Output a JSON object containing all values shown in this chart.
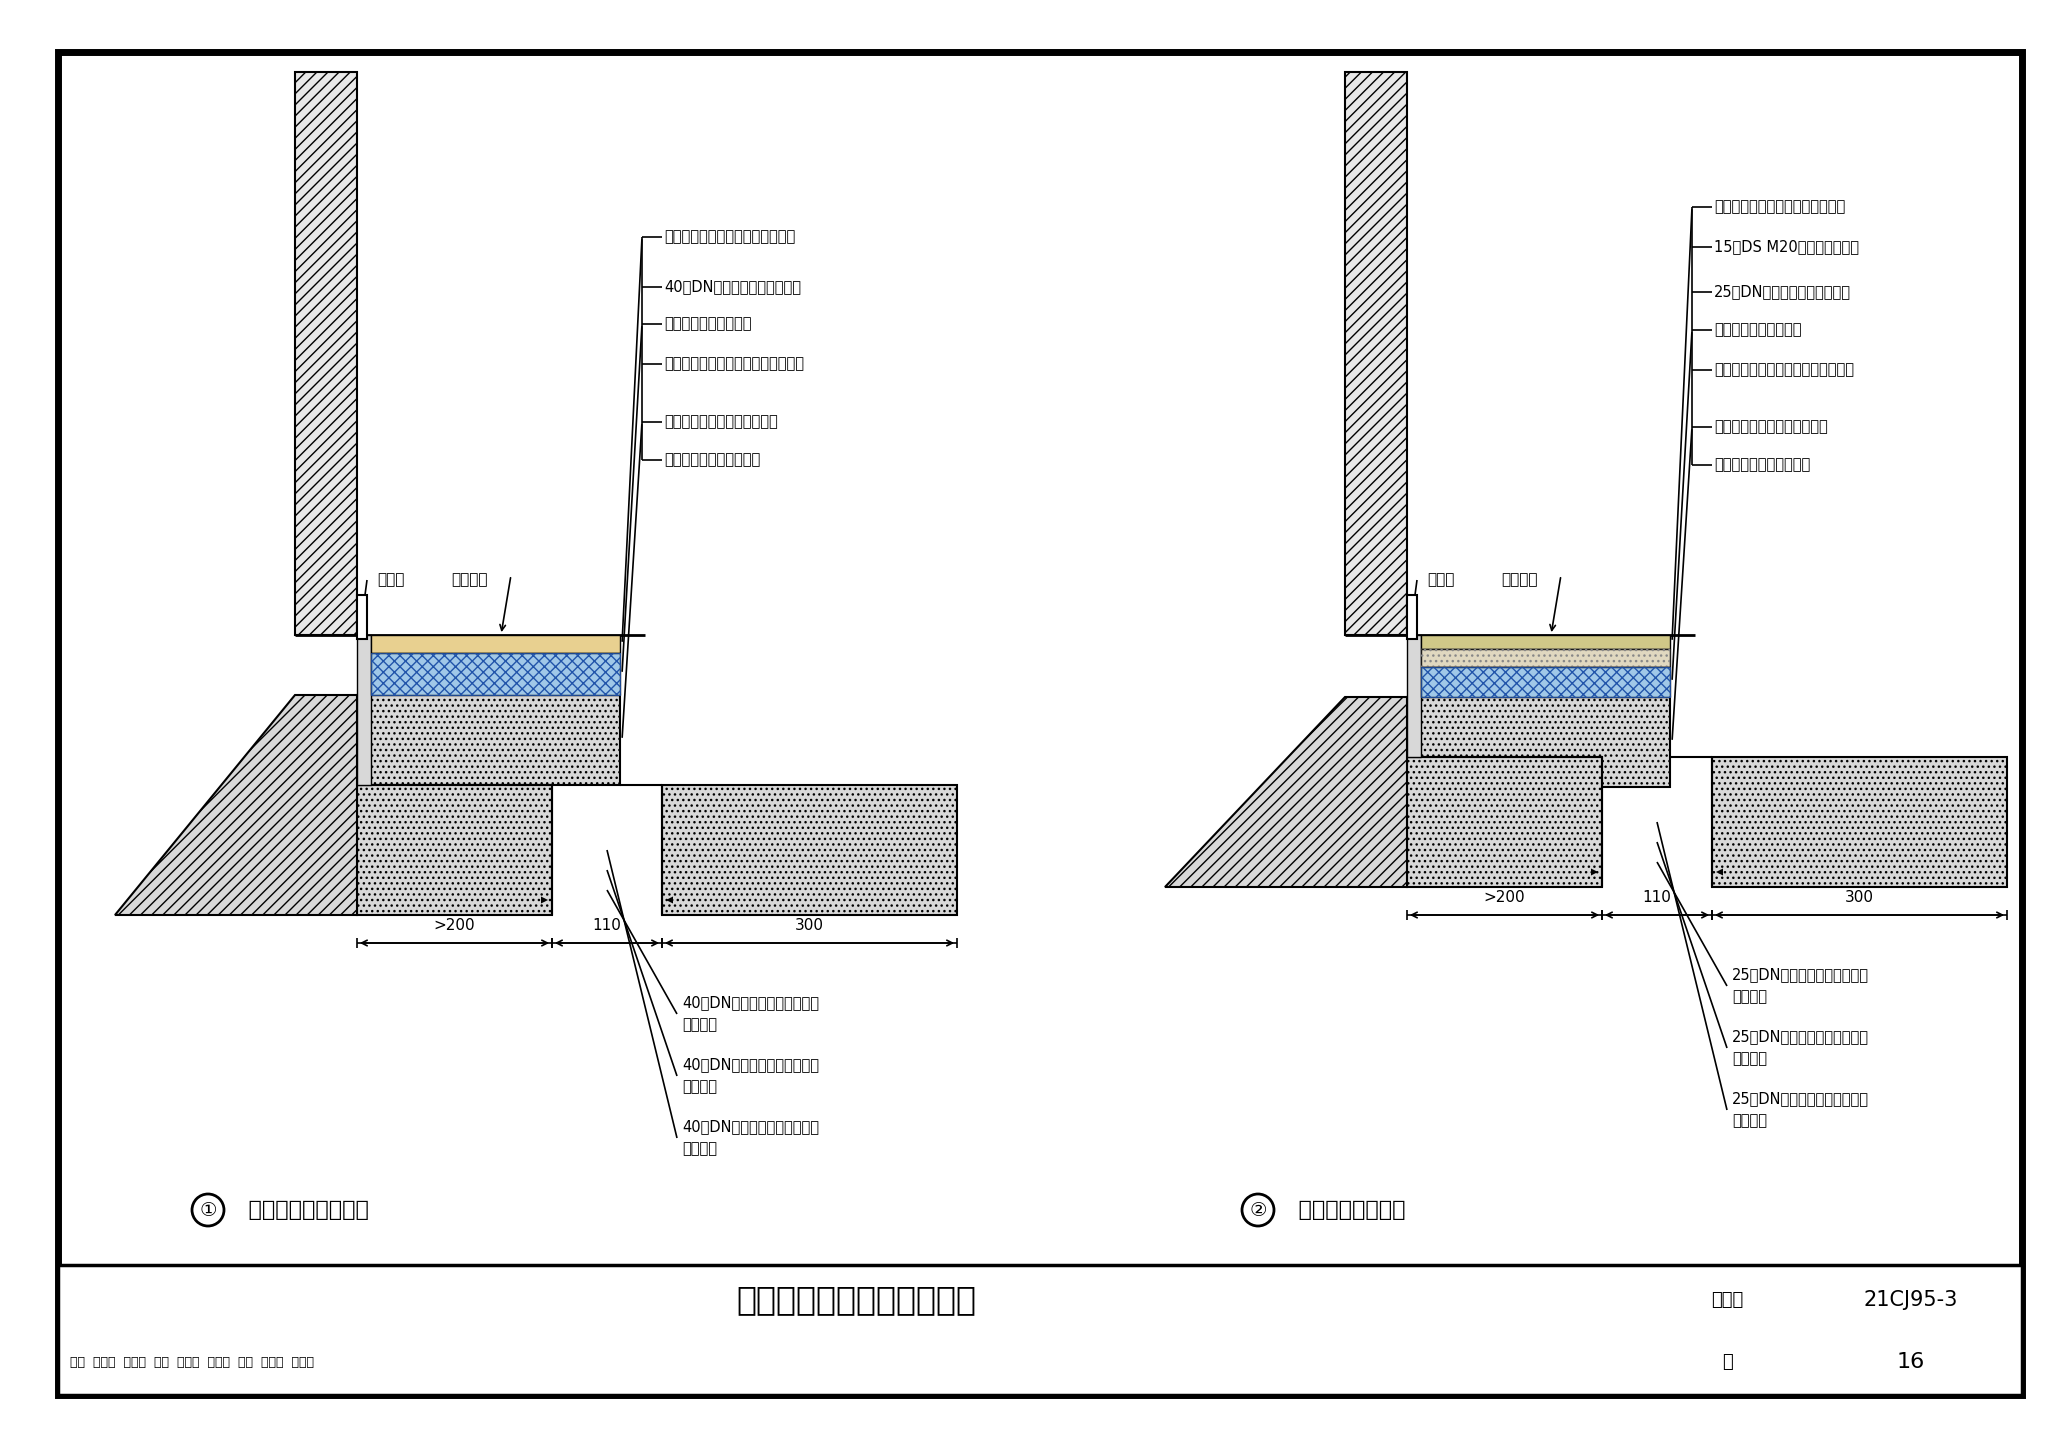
{
  "title_main": "木地板、地砖楼面构造做法",
  "figure_no": "21CJ95-3",
  "page_num": "16",
  "atlas_label": "图集号",
  "page_label": "页",
  "drawing1_caption": "木地板楼面构造做法",
  "drawing2_caption": "地砖楼面构造做法",
  "footer_info": "审图  唐海军  石海勇  校对  唐海燕  席海燕  设计  赵文平  赵文平",
  "drawing1_labels": [
    "木地板及底垫（见具体工程设计）",
    "40厚DN装配式保温隔声地暖板",
    "（内嵌碳纤维发热线）",
    "填充层随搞随抹（见具体工程设计）",
    "现浇钢筋混凝土楼板或预制楼",
    "板上现浇叠合层随搞随抹"
  ],
  "drawing2_labels": [
    "地砖及粘结层（见具体工程设计）",
    "15厚DS M20水泥砂浆找平层",
    "25厚DN装配式保温隔声地暖板",
    "（内嵌碳纤维发热线）",
    "填充层随搞随抹（见具体工程设计）",
    "现浇钢筋混凝土楼板或预制楼",
    "板上现浇叠合层随搞随抹"
  ],
  "drawing1_bot": [
    [
      "40厚DN装配式保温隔声地暖板",
      "标准模块"
    ],
    [
      "40厚DN装配式保温隔声地暖板",
      "主线模块"
    ],
    [
      "40厚DN装配式保温隔声地暖板",
      "端部模块"
    ]
  ],
  "drawing2_bot": [
    [
      "25厚DN装配式保温隔声地暖板",
      "标准模块"
    ],
    [
      "25厚DN装配式保温隔声地暖板",
      "主线模块"
    ],
    [
      "25厚DN装配式保温隔声地暖板",
      "端部模块"
    ]
  ],
  "dim_labels": [
    ">200",
    "110",
    "300"
  ],
  "label_skirting": "踢脚线",
  "label_floor": "楼面标高",
  "bg": "#ffffff",
  "wall_fc": "#e8e8e8",
  "concrete_fc": "#d8d8d8",
  "insul_fc": "#a0c8e8",
  "wood_fc": "#e8d090",
  "mortar_fc": "#e0d8c0",
  "tile_fc": "#d0c888"
}
